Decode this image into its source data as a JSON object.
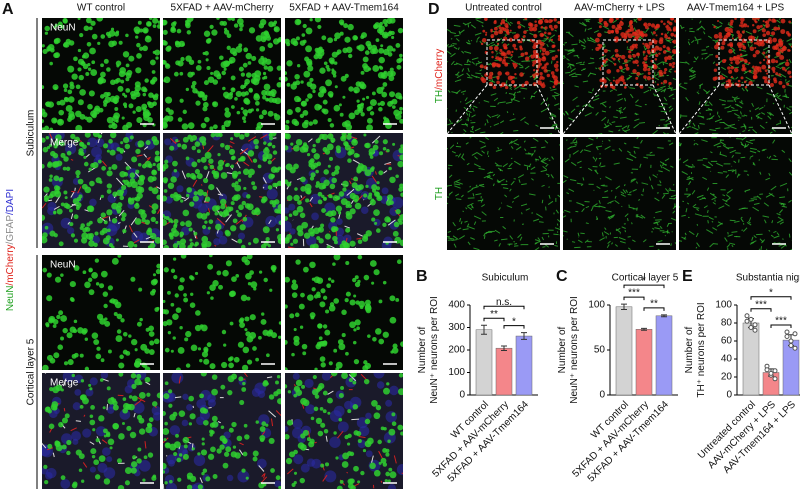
{
  "panels": [
    {
      "letter": "A",
      "columns": [
        "WT control",
        "5XFAD + AAV-mCherry",
        "5XFAD + AAV-Tmem164"
      ],
      "sections": [
        "Subiculum",
        "Cortical layer 5"
      ],
      "row_labels": [
        "NeuN",
        "Merge",
        "NeuN",
        "Merge"
      ],
      "stain_label": [
        {
          "text": "NeuN",
          "color": "#1fa01f"
        },
        {
          "text": "/mCherry",
          "color": "#e0261e"
        },
        {
          "text": "/GFAP",
          "color": "#8a8a8a"
        },
        {
          "text": "/DAPI",
          "color": "#2b2bd0"
        }
      ]
    },
    {
      "letter": "D",
      "columns": [
        "Untreated control",
        "AAV-mCherry + LPS",
        "AAV-Tmem164 + LPS"
      ],
      "row_labels": [
        [
          {
            "text": "TH",
            "color": "#1fa01f"
          },
          {
            "text": "/mCherry",
            "color": "#e0261e"
          }
        ],
        [
          {
            "text": "TH",
            "color": "#1fa01f"
          }
        ]
      ]
    }
  ],
  "chart_data": [
    {
      "type": "bar",
      "letter": "B",
      "title": "Subiculum",
      "y_label": [
        "Number of",
        "NeuN⁺ neurons per ROI"
      ],
      "categories": [
        "WT control",
        "5XFAD + AAV-mCherry",
        "5XFAD + AAV-Tmem164"
      ],
      "values": [
        290,
        208,
        262
      ],
      "errors": [
        20,
        10,
        15
      ],
      "colors": [
        "#d3d3d3",
        "#f4868a",
        "#9a9af5"
      ],
      "ylim": [
        0,
        400
      ],
      "yticks": [
        0,
        100,
        200,
        300,
        400
      ],
      "significance": [
        "**",
        "n.s.",
        "*"
      ]
    },
    {
      "type": "bar",
      "letter": "C",
      "title": "Cortical layer 5",
      "y_label": [
        "Number of",
        "NeuN⁺ neurons per ROI"
      ],
      "categories": [
        "WT control",
        "5XFAD + AAV-mCherry",
        "5XFAD + AAV-Tmem164"
      ],
      "values": [
        98,
        73,
        88
      ],
      "errors": [
        3,
        1,
        1
      ],
      "colors": [
        "#d3d3d3",
        "#f4868a",
        "#9a9af5"
      ],
      "ylim": [
        0,
        100
      ],
      "yticks": [
        0,
        50,
        100
      ],
      "significance": [
        "***",
        "*",
        "**"
      ]
    },
    {
      "type": "bar",
      "letter": "E",
      "title": "Substantia nigra",
      "y_label": [
        "Number of",
        "TH⁺ neurons per ROI"
      ],
      "categories": [
        "Untreated control",
        "AAV-mCherry + LPS",
        "AAV-Tmem164 + LPS"
      ],
      "values": [
        80,
        25,
        61
      ],
      "errors": [
        5,
        4,
        6
      ],
      "colors": [
        "#d3d3d3",
        "#f4868a",
        "#9a9af5"
      ],
      "points": [
        [
          88,
          75,
          72,
          82,
          84,
          78
        ],
        [
          32,
          22,
          18,
          28,
          24,
          27
        ],
        [
          70,
          55,
          52,
          65,
          60,
          68
        ]
      ],
      "ylim": [
        0,
        100
      ],
      "yticks": [
        0,
        20,
        40,
        60,
        80,
        100
      ],
      "significance": [
        "***",
        "*",
        "***"
      ]
    }
  ]
}
